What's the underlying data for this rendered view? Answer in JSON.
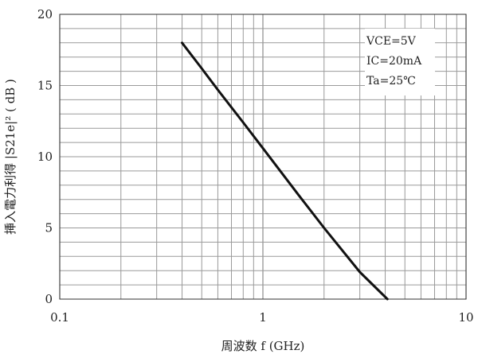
{
  "chart_data": {
    "type": "line",
    "x_scale": "log",
    "y_scale": "linear",
    "xlim": [
      0.1,
      10
    ],
    "ylim": [
      0,
      20
    ],
    "grid": true,
    "xlabel": "周波数 f (GHz)",
    "ylabel": "挿入電力利得 |S21e|² ( dB )",
    "x_ticks": [
      0.1,
      1,
      10
    ],
    "x_tick_labels": [
      "0.1",
      "1",
      "10"
    ],
    "y_ticks": [
      0,
      5,
      10,
      15,
      20
    ],
    "y_tick_labels": [
      "0",
      "5",
      "10",
      "15",
      "20"
    ],
    "annotations": [
      "VCE=5V",
      "IC=20mA",
      "Ta=25℃"
    ],
    "annotation_placement": "top-right",
    "series": [
      {
        "x": [
          0.4,
          0.5,
          0.6,
          0.8,
          1.0,
          1.5,
          2.0,
          3.0,
          4.1
        ],
        "y": [
          18.0,
          16.2,
          14.7,
          12.4,
          10.6,
          7.3,
          5.0,
          1.9,
          0.0
        ]
      }
    ],
    "colors": {
      "line": "#111111",
      "grid": "#9a9a9a",
      "axis": "#333333"
    }
  }
}
